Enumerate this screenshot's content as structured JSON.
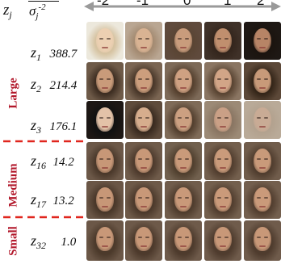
{
  "header": {
    "z_label": "z",
    "z_sub": "j",
    "sigma_label": "σ",
    "sigma_sub": "j",
    "sigma_sup": "-2"
  },
  "columns": [
    "-2",
    "-1",
    "0",
    "1",
    "2"
  ],
  "groups": [
    {
      "label": "Large"
    },
    {
      "label": "Medium"
    },
    {
      "label": "Small"
    }
  ],
  "rows": [
    {
      "z": "z",
      "sub": "1",
      "sigma": "388.7",
      "group": "Large"
    },
    {
      "z": "z",
      "sub": "2",
      "sigma": "214.4",
      "group": "Large"
    },
    {
      "z": "z",
      "sub": "3",
      "sigma": "176.1",
      "group": "Large"
    },
    {
      "z": "z",
      "sub": "16",
      "sigma": "14.2",
      "group": "Medium"
    },
    {
      "z": "z",
      "sub": "17",
      "sigma": "13.2",
      "group": "Medium"
    },
    {
      "z": "z",
      "sub": "32",
      "sigma": "1.0",
      "group": "Small"
    }
  ],
  "colors": {
    "group_label": "#b2182b",
    "divider": "#e0261e",
    "arrow": "#9a9a9a"
  }
}
